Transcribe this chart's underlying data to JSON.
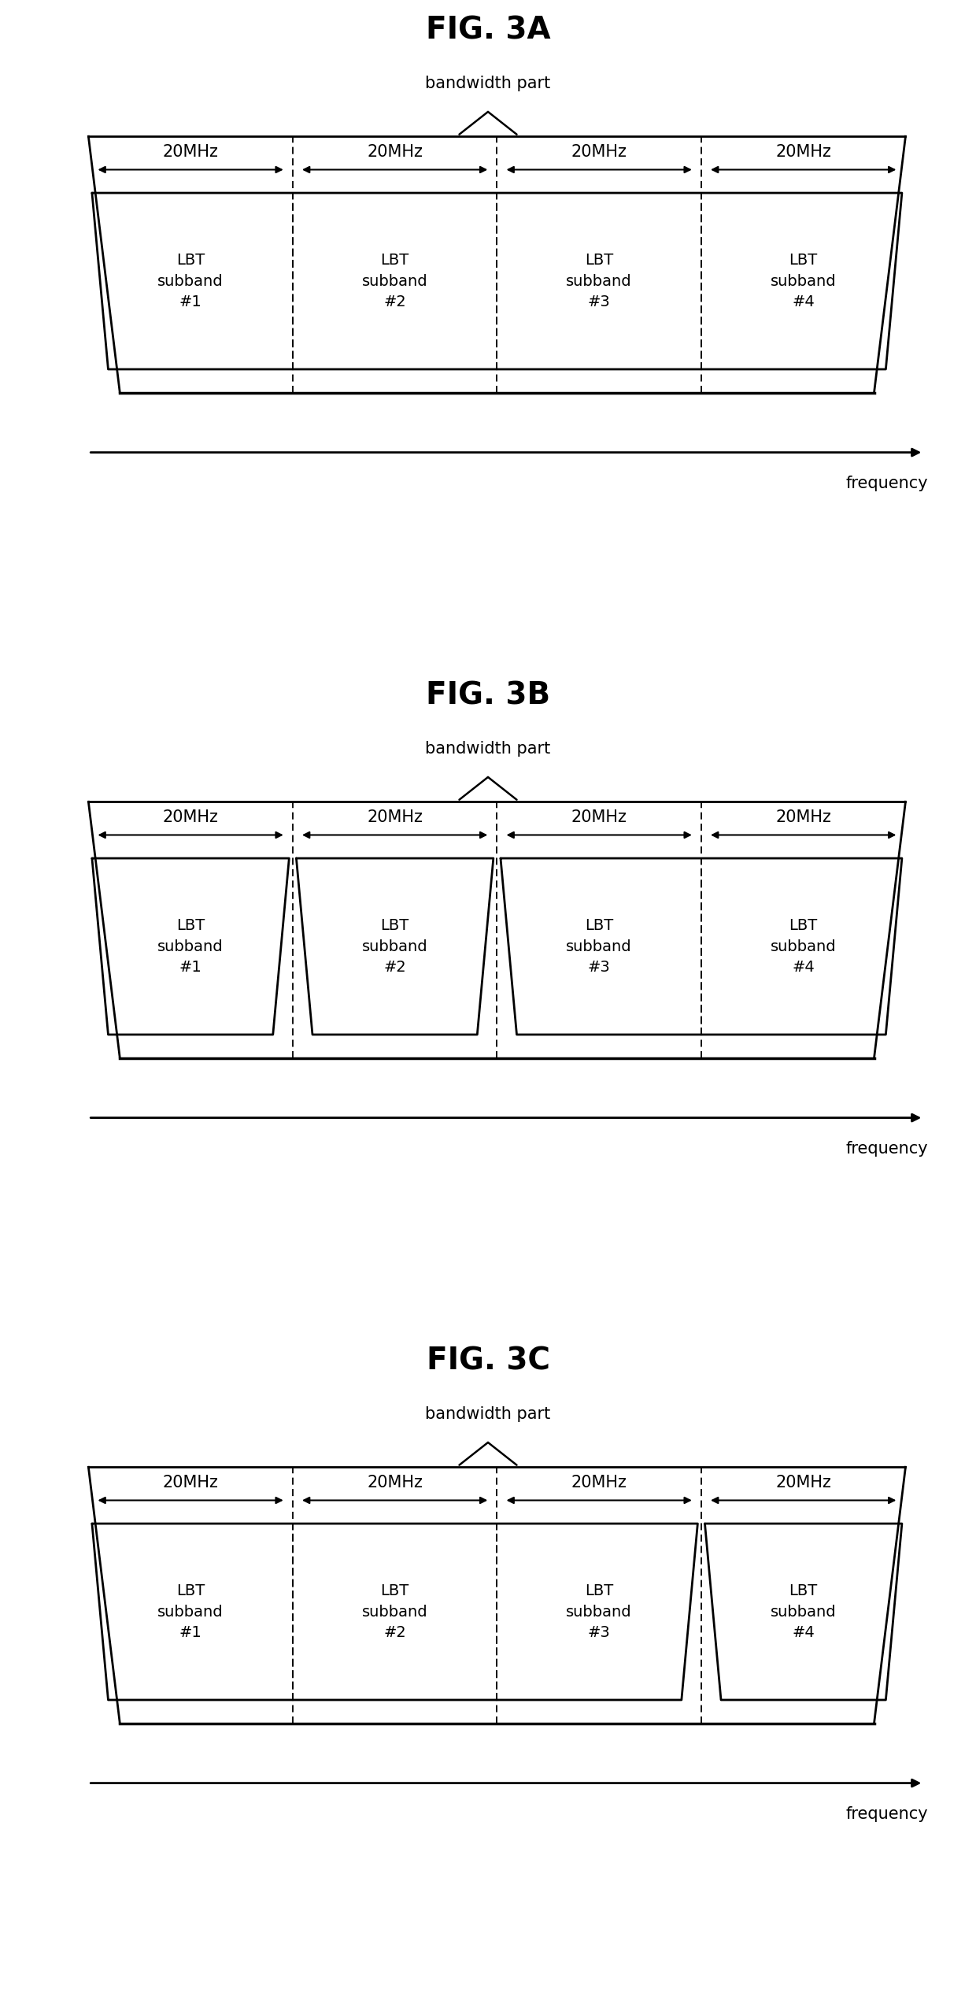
{
  "figures": [
    {
      "title": "FIG. 3A",
      "bandwidth_label": "bandwidth part",
      "mhz_labels": [
        "20MHz",
        "20MHz",
        "20MHz",
        "20MHz"
      ],
      "subband_labels": [
        "LBT\nsubband\n#1",
        "LBT\nsubband\n#2",
        "LBT\nsubband\n#3",
        "LBT\nsubband\n#4"
      ],
      "groups": [
        [
          0,
          1,
          2,
          3
        ]
      ],
      "freq_label": "frequency"
    },
    {
      "title": "FIG. 3B",
      "bandwidth_label": "bandwidth part",
      "mhz_labels": [
        "20MHz",
        "20MHz",
        "20MHz",
        "20MHz"
      ],
      "subband_labels": [
        "LBT\nsubband\n#1",
        "LBT\nsubband\n#2",
        "LBT\nsubband\n#3",
        "LBT\nsubband\n#4"
      ],
      "groups": [
        [
          0
        ],
        [
          1
        ],
        [
          2,
          3
        ]
      ],
      "freq_label": "frequency"
    },
    {
      "title": "FIG. 3C",
      "bandwidth_label": "bandwidth part",
      "mhz_labels": [
        "20MHz",
        "20MHz",
        "20MHz",
        "20MHz"
      ],
      "subband_labels": [
        "LBT\nsubband\n#1",
        "LBT\nsubband\n#2",
        "LBT\nsubband\n#3",
        "LBT\nsubband\n#4"
      ],
      "groups": [
        [
          0,
          1,
          2
        ],
        [
          3
        ]
      ],
      "freq_label": "frequency"
    }
  ],
  "background_color": "#ffffff",
  "line_color": "#000000",
  "text_color": "#000000",
  "title_fontsize": 28,
  "label_fontsize": 15,
  "subband_fontsize": 14,
  "mhz_fontsize": 15,
  "outer_slant": 0.35,
  "inner_slant_single": 0.18,
  "inner_slant_per_band": 0.04
}
